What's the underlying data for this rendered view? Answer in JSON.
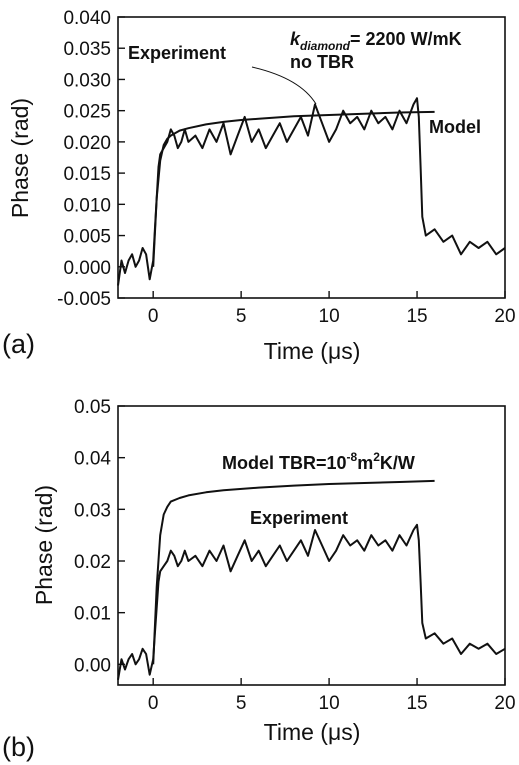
{
  "chart_data": [
    {
      "id": "a",
      "type": "line",
      "panel_label": "(a)",
      "xlabel": "Time (μs)",
      "ylabel": "Phase (rad)",
      "xlim": [
        -2,
        20
      ],
      "ylim": [
        -0.005,
        0.04
      ],
      "xticks": [
        0,
        5,
        10,
        15,
        20
      ],
      "xtick_labels": [
        "0",
        "5",
        "10",
        "15",
        "20"
      ],
      "yticks": [
        -0.005,
        0.0,
        0.005,
        0.01,
        0.015,
        0.02,
        0.025,
        0.03,
        0.035,
        0.04
      ],
      "ytick_labels": [
        "-0.005",
        "0.000",
        "0.005",
        "0.010",
        "0.015",
        "0.020",
        "0.025",
        "0.030",
        "0.035",
        "0.040"
      ],
      "grid": false,
      "series": [
        {
          "name": "Experiment",
          "x": [
            -2.0,
            -1.8,
            -1.6,
            -1.4,
            -1.2,
            -1.0,
            -0.8,
            -0.6,
            -0.4,
            -0.2,
            0.0,
            0.1,
            0.2,
            0.3,
            0.4,
            0.6,
            0.8,
            1.0,
            1.2,
            1.4,
            1.6,
            1.8,
            2.0,
            2.4,
            2.8,
            3.2,
            3.6,
            4.0,
            4.4,
            4.8,
            5.2,
            5.6,
            6.0,
            6.4,
            6.8,
            7.2,
            7.6,
            8.0,
            8.4,
            8.8,
            9.2,
            9.6,
            10.0,
            10.4,
            10.8,
            11.2,
            11.6,
            12.0,
            12.4,
            12.8,
            13.2,
            13.6,
            14.0,
            14.4,
            14.8,
            15.0,
            15.1,
            15.2,
            15.3,
            15.5,
            16.0,
            16.5,
            17.0,
            17.5,
            18.0,
            18.5,
            19.0,
            19.5,
            20.0
          ],
          "values": [
            -0.003,
            0.001,
            -0.001,
            0.001,
            0.002,
            0.0,
            0.001,
            0.003,
            0.002,
            -0.002,
            0.001,
            0.006,
            0.011,
            0.016,
            0.018,
            0.019,
            0.02,
            0.022,
            0.021,
            0.019,
            0.02,
            0.022,
            0.02,
            0.021,
            0.019,
            0.022,
            0.02,
            0.023,
            0.018,
            0.021,
            0.024,
            0.02,
            0.022,
            0.019,
            0.021,
            0.023,
            0.02,
            0.022,
            0.024,
            0.021,
            0.026,
            0.023,
            0.02,
            0.022,
            0.025,
            0.023,
            0.024,
            0.022,
            0.025,
            0.023,
            0.024,
            0.022,
            0.025,
            0.023,
            0.026,
            0.027,
            0.024,
            0.016,
            0.008,
            0.005,
            0.006,
            0.004,
            0.005,
            0.002,
            0.004,
            0.003,
            0.004,
            0.002,
            0.003
          ]
        },
        {
          "name": "Model",
          "x": [
            0.0,
            0.2,
            0.4,
            0.6,
            0.8,
            1.0,
            1.5,
            2.0,
            3.0,
            4.0,
            5.0,
            6.0,
            8.0,
            10.0,
            12.0,
            14.0,
            16.0
          ],
          "values": [
            0.0,
            0.011,
            0.017,
            0.0195,
            0.0205,
            0.021,
            0.0218,
            0.0222,
            0.0228,
            0.0232,
            0.0235,
            0.0237,
            0.0241,
            0.0243,
            0.0245,
            0.0247,
            0.0248
          ]
        }
      ],
      "annotations": {
        "experiment": "Experiment",
        "model": "Model",
        "k_symbol": "k",
        "k_subscript": "diamond",
        "k_value": "= 2200 W/mK",
        "no_tbr": "no TBR"
      }
    },
    {
      "id": "b",
      "type": "line",
      "panel_label": "(b)",
      "xlabel": "Time (μs)",
      "ylabel": "Phase (rad)",
      "xlim": [
        -2,
        20
      ],
      "ylim": [
        -0.004,
        0.05
      ],
      "xticks": [
        0,
        5,
        10,
        15,
        20
      ],
      "xtick_labels": [
        "0",
        "5",
        "10",
        "15",
        "20"
      ],
      "yticks": [
        0.0,
        0.01,
        0.02,
        0.03,
        0.04,
        0.05
      ],
      "ytick_labels": [
        "0.00",
        "0.01",
        "0.02",
        "0.03",
        "0.04",
        "0.05"
      ],
      "grid": false,
      "series": [
        {
          "name": "Experiment",
          "x": [
            -2.0,
            -1.8,
            -1.6,
            -1.4,
            -1.2,
            -1.0,
            -0.8,
            -0.6,
            -0.4,
            -0.2,
            0.0,
            0.1,
            0.2,
            0.3,
            0.4,
            0.6,
            0.8,
            1.0,
            1.2,
            1.4,
            1.6,
            1.8,
            2.0,
            2.4,
            2.8,
            3.2,
            3.6,
            4.0,
            4.4,
            4.8,
            5.2,
            5.6,
            6.0,
            6.4,
            6.8,
            7.2,
            7.6,
            8.0,
            8.4,
            8.8,
            9.2,
            9.6,
            10.0,
            10.4,
            10.8,
            11.2,
            11.6,
            12.0,
            12.4,
            12.8,
            13.2,
            13.6,
            14.0,
            14.4,
            14.8,
            15.0,
            15.1,
            15.2,
            15.3,
            15.5,
            16.0,
            16.5,
            17.0,
            17.5,
            18.0,
            18.5,
            19.0,
            19.5,
            20.0
          ],
          "values": [
            -0.003,
            0.001,
            -0.001,
            0.001,
            0.002,
            0.0,
            0.001,
            0.003,
            0.002,
            -0.002,
            0.001,
            0.006,
            0.011,
            0.016,
            0.018,
            0.019,
            0.02,
            0.022,
            0.021,
            0.019,
            0.02,
            0.022,
            0.02,
            0.021,
            0.019,
            0.022,
            0.02,
            0.023,
            0.018,
            0.021,
            0.024,
            0.02,
            0.022,
            0.019,
            0.021,
            0.023,
            0.02,
            0.022,
            0.024,
            0.021,
            0.026,
            0.023,
            0.02,
            0.022,
            0.025,
            0.023,
            0.024,
            0.022,
            0.025,
            0.023,
            0.024,
            0.022,
            0.025,
            0.023,
            0.026,
            0.027,
            0.024,
            0.016,
            0.008,
            0.005,
            0.006,
            0.004,
            0.005,
            0.002,
            0.004,
            0.003,
            0.004,
            0.002,
            0.003
          ]
        },
        {
          "name": "Model TBR",
          "x": [
            0.0,
            0.2,
            0.4,
            0.6,
            0.8,
            1.0,
            1.5,
            2.0,
            3.0,
            4.0,
            6.0,
            8.0,
            10.0,
            12.0,
            14.0,
            16.0
          ],
          "values": [
            0.0,
            0.015,
            0.025,
            0.029,
            0.0305,
            0.0315,
            0.0322,
            0.0327,
            0.0333,
            0.0337,
            0.0342,
            0.0346,
            0.0349,
            0.0351,
            0.0353,
            0.0355
          ]
        }
      ],
      "annotations": {
        "experiment": "Experiment",
        "model_prefix": "Model TBR=10",
        "exp1": "-8",
        "mid": "m",
        "exp2": "2",
        "suffix": "K/W"
      }
    }
  ]
}
